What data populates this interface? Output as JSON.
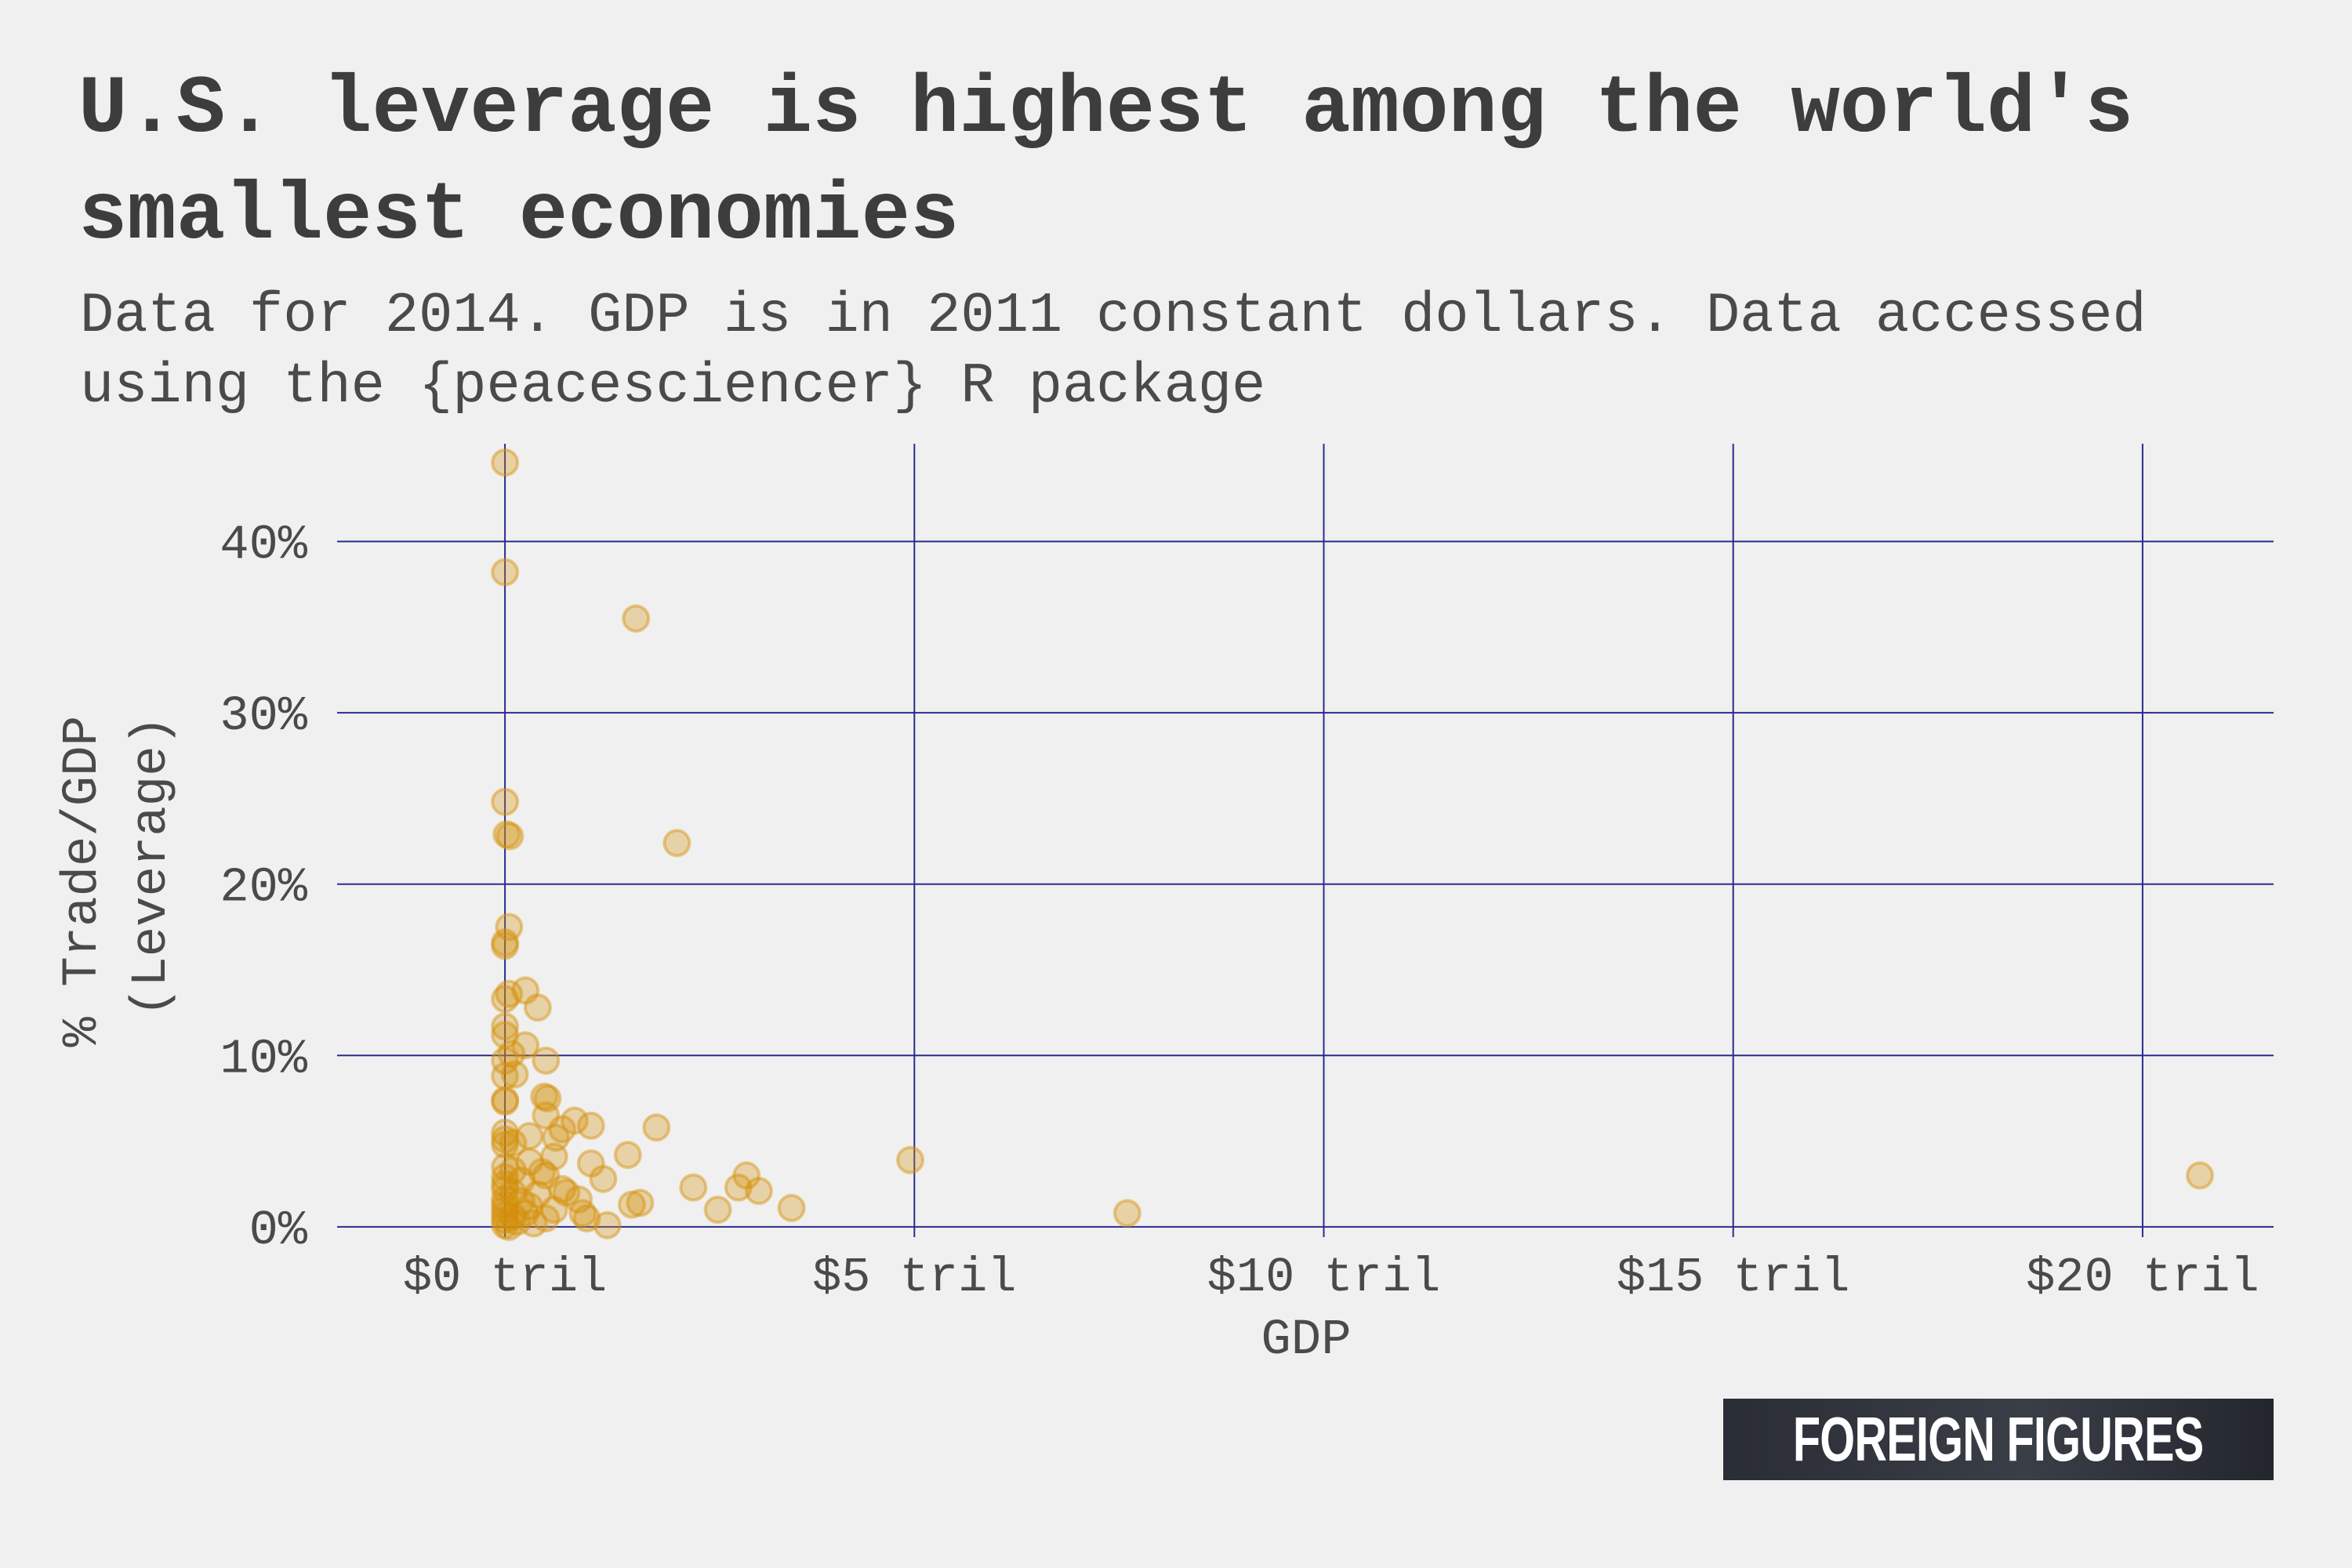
{
  "chart_data": {
    "type": "scatter",
    "title": "U.S. leverage is highest among the world's smallest economies",
    "subtitle": "Data for 2014. GDP is in 2011 constant dollars. Data accessed using the {peacesciencer} R package",
    "xlabel": "GDP",
    "ylabel": "% Trade/GDP (Leverage)",
    "xlim": [
      -2.05,
      21.6
    ],
    "ylim": [
      -0.6,
      45.7
    ],
    "x_ticks": [
      0,
      5,
      10,
      15,
      20
    ],
    "x_tick_labels": [
      "$0 tril",
      "$5 tril",
      "$10 tril",
      "$15 tril",
      "$20 tril"
    ],
    "y_ticks": [
      0,
      10,
      20,
      30,
      40
    ],
    "y_tick_labels": [
      "0%",
      "10%",
      "20%",
      "30%",
      "40%"
    ],
    "x_units": "trillions of 2011 constant dollars",
    "y_units": "percent",
    "grid": true,
    "point_color": "#d4900a",
    "grid_color": "#2b2b8f",
    "points": [
      [
        0.0,
        44.6
      ],
      [
        0.0,
        38.2
      ],
      [
        1.6,
        35.5
      ],
      [
        0.0,
        24.8
      ],
      [
        0.02,
        22.9
      ],
      [
        0.06,
        22.8
      ],
      [
        2.1,
        22.4
      ],
      [
        0.05,
        17.5
      ],
      [
        0.0,
        16.6
      ],
      [
        0.0,
        16.4
      ],
      [
        0.25,
        13.8
      ],
      [
        0.05,
        13.6
      ],
      [
        0.0,
        13.3
      ],
      [
        0.4,
        12.8
      ],
      [
        0.0,
        11.7
      ],
      [
        0.0,
        11.2
      ],
      [
        0.25,
        10.6
      ],
      [
        0.08,
        10.1
      ],
      [
        0.5,
        9.7
      ],
      [
        0.0,
        9.7
      ],
      [
        0.12,
        8.9
      ],
      [
        0.0,
        8.8
      ],
      [
        0.48,
        7.6
      ],
      [
        0.52,
        7.5
      ],
      [
        0.0,
        7.4
      ],
      [
        0.0,
        7.3
      ],
      [
        0.5,
        6.5
      ],
      [
        0.85,
        6.2
      ],
      [
        1.05,
        5.9
      ],
      [
        1.85,
        5.8
      ],
      [
        0.7,
        5.7
      ],
      [
        0.62,
        5.2
      ],
      [
        0.3,
        5.3
      ],
      [
        0.0,
        5.5
      ],
      [
        0.0,
        5.1
      ],
      [
        0.1,
        4.9
      ],
      [
        0.0,
        4.8
      ],
      [
        0.6,
        4.1
      ],
      [
        1.5,
        4.2
      ],
      [
        4.95,
        3.9
      ],
      [
        1.05,
        3.7
      ],
      [
        0.3,
        3.8
      ],
      [
        0.0,
        3.5
      ],
      [
        0.1,
        3.3
      ],
      [
        0.45,
        3.2
      ],
      [
        20.7,
        3.0
      ],
      [
        2.95,
        3.0
      ],
      [
        0.5,
        3.0
      ],
      [
        1.2,
        2.8
      ],
      [
        0.0,
        2.9
      ],
      [
        0.2,
        2.7
      ],
      [
        0.0,
        2.5
      ],
      [
        2.3,
        2.3
      ],
      [
        2.85,
        2.3
      ],
      [
        0.7,
        2.2
      ],
      [
        0.0,
        2.2
      ],
      [
        3.1,
        2.1
      ],
      [
        0.75,
        2.0
      ],
      [
        0.1,
        2.0
      ],
      [
        0.4,
        1.9
      ],
      [
        0.9,
        1.6
      ],
      [
        0.0,
        1.6
      ],
      [
        0.2,
        1.5
      ],
      [
        1.65,
        1.4
      ],
      [
        1.55,
        1.3
      ],
      [
        0.0,
        1.3
      ],
      [
        0.3,
        1.2
      ],
      [
        3.5,
        1.1
      ],
      [
        2.6,
        1.0
      ],
      [
        0.6,
        1.0
      ],
      [
        0.0,
        1.0
      ],
      [
        0.95,
        0.8
      ],
      [
        7.6,
        0.8
      ],
      [
        0.25,
        0.8
      ],
      [
        0.0,
        0.7
      ],
      [
        0.1,
        0.6
      ],
      [
        0.5,
        0.5
      ],
      [
        1.0,
        0.5
      ],
      [
        0.0,
        0.4
      ],
      [
        0.15,
        0.3
      ],
      [
        0.35,
        0.2
      ],
      [
        1.25,
        0.1
      ],
      [
        0.0,
        0.1
      ],
      [
        0.05,
        0.0
      ]
    ]
  },
  "brand": {
    "label": "FOREIGN FIGURES",
    "background": "#2a2d35",
    "text_color": "#ffffff"
  }
}
